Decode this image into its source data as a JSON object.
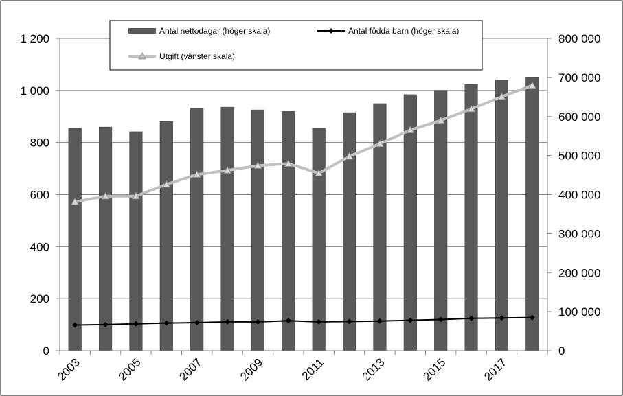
{
  "chart_data": {
    "type": "bar",
    "categories": [
      "2003",
      "2004",
      "2005",
      "2006",
      "2007",
      "2008",
      "2009",
      "2010",
      "2011",
      "2012",
      "2013",
      "2014",
      "2015",
      "2016",
      "2017",
      "2018"
    ],
    "x_tick_labels": [
      "2003",
      "2005",
      "2007",
      "2009",
      "2011",
      "2013",
      "2015",
      "2017"
    ],
    "series": [
      {
        "name": "Antal nettodagar (höger skala)",
        "kind": "bar",
        "axis": "right",
        "color": "#595959",
        "values": [
          570000,
          573000,
          561000,
          587000,
          621000,
          624000,
          617000,
          613000,
          570000,
          610000,
          633000,
          656000,
          667000,
          682000,
          693000,
          701000
        ]
      },
      {
        "name": "Antal födda barn (höger skala)",
        "kind": "line",
        "axis": "right",
        "color": "#000000",
        "marker": "diamond",
        "values": [
          66000,
          67000,
          69000,
          71000,
          72000,
          74000,
          74000,
          77000,
          74000,
          75000,
          76000,
          78000,
          80000,
          83000,
          84000,
          85000
        ]
      },
      {
        "name": "Utgift (vänster skala)",
        "kind": "line",
        "axis": "left",
        "color": "#c0c0c0",
        "marker": "triangle",
        "values": [
          572,
          594,
          594,
          639,
          677,
          693,
          711,
          719,
          682,
          747,
          795,
          848,
          885,
          929,
          976,
          1019
        ]
      }
    ],
    "y_left": {
      "min": 0,
      "max": 1200,
      "ticks": [
        "0",
        "200",
        "400",
        "600",
        "800",
        "1 000",
        "1 200"
      ]
    },
    "y_right": {
      "min": 0,
      "max": 800000,
      "ticks": [
        "0",
        "100 000",
        "200 000",
        "300 000",
        "400 000",
        "500 000",
        "600 000",
        "700 000",
        "800 000"
      ]
    },
    "grid": true,
    "legend_placement": "top"
  }
}
